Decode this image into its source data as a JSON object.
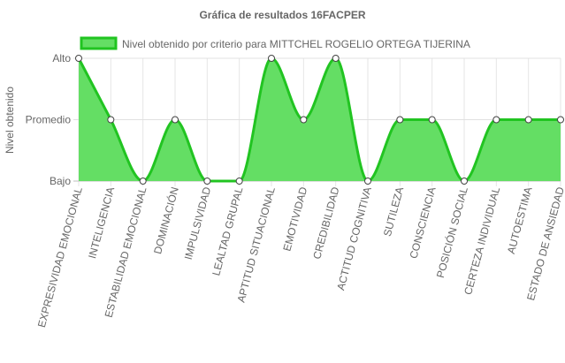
{
  "chart_data": {
    "type": "area",
    "title": "Gráfica de resultados 16FACPER",
    "xlabel": "",
    "ylabel": "Nivel obtenido",
    "y_levels": [
      "Bajo",
      "Promedio",
      "Alto"
    ],
    "ylim": [
      0,
      2
    ],
    "grid": true,
    "legend_position": "top",
    "categories": [
      "EXPRESIVIDAD EMOCIONAL",
      "INTELIGENCIA",
      "ESTABILIDAD EMOCIONAL",
      "DOMINACIÓN",
      "IMPULSIVIDAD",
      "LEALTAD GRUPAL",
      "APTITUD SITUACIONAL",
      "EMOTIVIDAD",
      "CREDIBILIDAD",
      "ACTITUD COGNITIVA",
      "SUTILEZA",
      "CONSCIENCIA",
      "POSICIÓN SOCIAL",
      "CERTEZA INDIVIDUAL",
      "AUTOESTIMA",
      "ESTADO DE ANSIEDAD"
    ],
    "series": [
      {
        "name": "Nivel obtenido por criterio para MITTCHEL ROGELIO ORTEGA TIJERINA",
        "values": [
          2,
          1,
          0,
          1,
          0,
          0,
          2,
          1,
          2,
          0,
          1,
          1,
          0,
          1,
          1,
          1
        ],
        "line_color": "#21c421",
        "fill_color": "#64de64"
      }
    ]
  }
}
